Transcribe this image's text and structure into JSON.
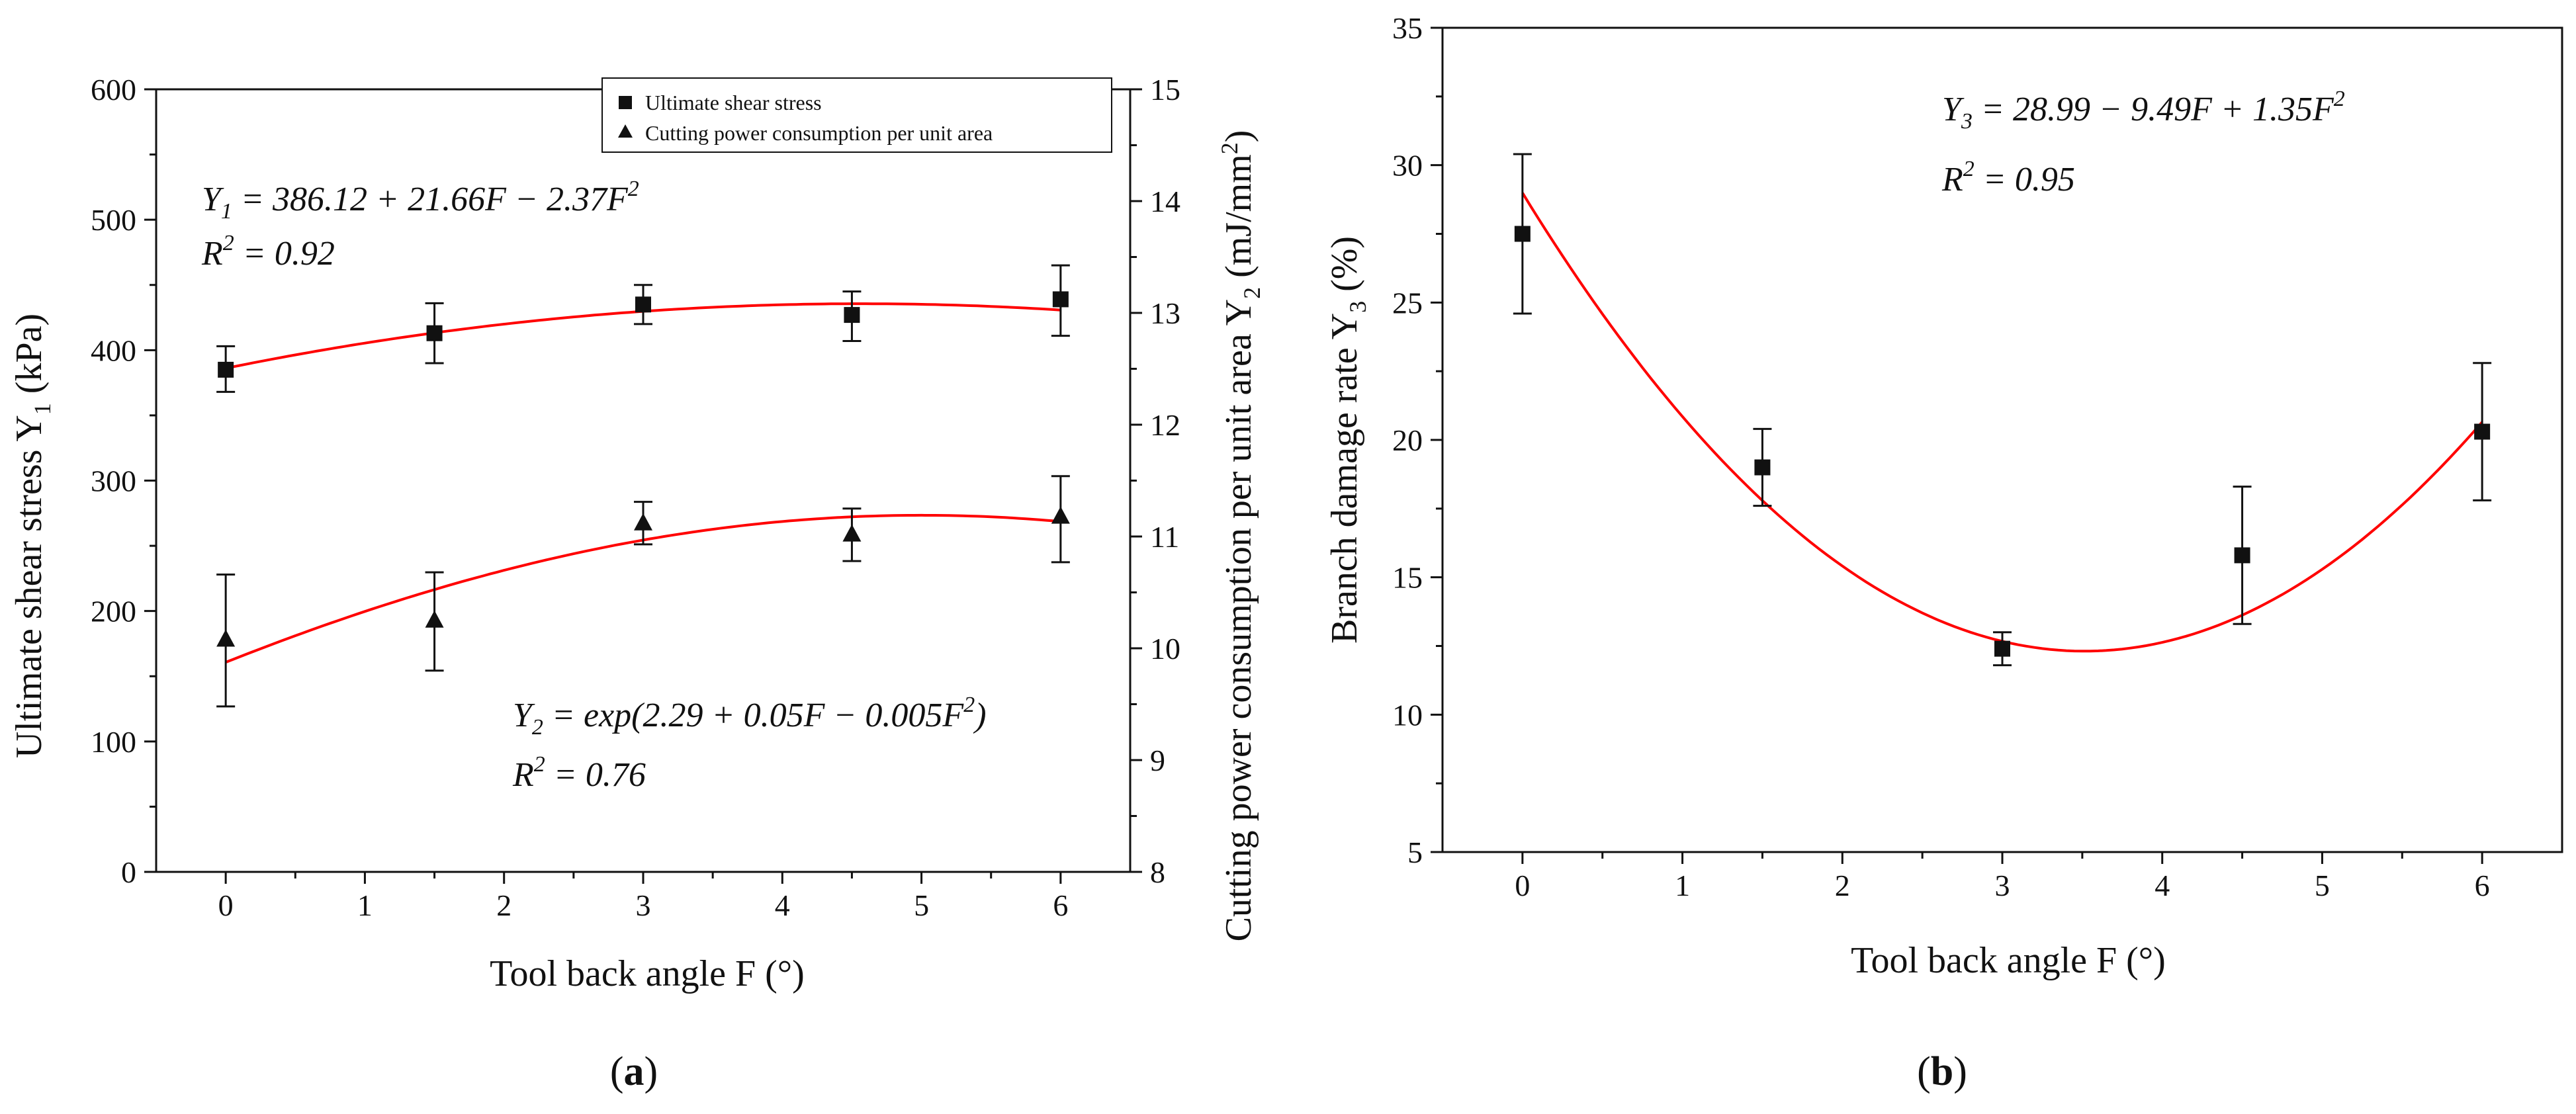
{
  "figure": {
    "panel_a_label": {
      "open": "(",
      "letter": "a",
      "close": ")"
    },
    "panel_b_label": {
      "open": "(",
      "letter": "b",
      "close": ")"
    }
  },
  "colors": {
    "fit": "#ff0000",
    "marker": "#111111",
    "axis": "#111111"
  },
  "chart_data": [
    {
      "type": "scatter",
      "panel": "a",
      "xlabel": "Tool back angle F (°)",
      "ylabel_left": {
        "main": "Ultimate shear stress Y",
        "sub": "1",
        "unit": " (kPa)"
      },
      "ylabel_right": {
        "main": "Cutting power consumption per unit area Y",
        "sub": "2",
        "unit": " (mJ/mm",
        "sup": "2",
        "close": ")"
      },
      "xlim": [
        -0.5,
        6.5
      ],
      "ylim_left": [
        0,
        600
      ],
      "ylim_right": [
        8,
        15
      ],
      "xticks": [
        0,
        1,
        2,
        3,
        4,
        5,
        6
      ],
      "yticks_left": [
        0,
        100,
        200,
        300,
        400,
        500,
        600
      ],
      "yticks_right": [
        8,
        9,
        10,
        11,
        12,
        13,
        14,
        15
      ],
      "legend": {
        "position": "top-right",
        "entries": [
          {
            "marker": "square",
            "label": "Ultimate shear stress"
          },
          {
            "marker": "triangle",
            "label": "Cutting power consumption per unit area"
          }
        ]
      },
      "series": [
        {
          "name": "Ultimate shear stress",
          "axis": "left",
          "marker": "square",
          "x": [
            0,
            1.5,
            3,
            4.5,
            6
          ],
          "y": [
            385,
            413,
            435,
            427,
            439
          ],
          "err_low": [
            368,
            390,
            420,
            407,
            411
          ],
          "err_high": [
            403,
            436,
            450,
            445,
            465
          ],
          "fit": {
            "type": "quadratic",
            "coef": [
              386.12,
              21.66,
              -2.37
            ]
          }
        },
        {
          "name": "Cutting power consumption per unit area",
          "axis": "right",
          "marker": "triangle",
          "x": [
            0,
            1.5,
            3,
            4.5,
            6
          ],
          "y": [
            10.08,
            10.25,
            11.12,
            11.02,
            11.18
          ],
          "err_low": [
            9.48,
            9.8,
            10.93,
            10.78,
            10.77
          ],
          "err_high": [
            10.66,
            10.68,
            11.31,
            11.25,
            11.54
          ],
          "fit": {
            "type": "exp_quadratic",
            "coef": [
              2.29,
              0.05,
              -0.005
            ]
          }
        }
      ],
      "annotations": {
        "eq1": {
          "lhs": "Y",
          "sub": "1",
          "rhs": " = 386.12 + 21.66F − 2.37F",
          "sup": "2"
        },
        "r2_1": {
          "lhs": "R",
          "sup": "2",
          "rhs": " = 0.92"
        },
        "eq2": {
          "lhs": "Y",
          "sub": "2",
          "rhs": " = exp(2.29 + 0.05F − 0.005F",
          "sup": "2",
          "close": ")"
        },
        "r2_2": {
          "lhs": "R",
          "sup": "2",
          "rhs": " = 0.76"
        }
      }
    },
    {
      "type": "scatter",
      "panel": "b",
      "xlabel": "Tool back angle F (°)",
      "ylabel": {
        "main": "Branch damage rate Y",
        "sub": "3",
        "unit": " (%)"
      },
      "xlim": [
        -0.5,
        6.5
      ],
      "ylim": [
        5,
        35
      ],
      "xticks": [
        0,
        1,
        2,
        3,
        4,
        5,
        6
      ],
      "yticks": [
        5,
        10,
        15,
        20,
        25,
        30,
        35
      ],
      "series": [
        {
          "name": "Branch damage rate",
          "marker": "square",
          "x": [
            0,
            1.5,
            3,
            4.5,
            6
          ],
          "y": [
            27.5,
            19.0,
            12.4,
            15.8,
            20.3
          ],
          "err_low": [
            24.6,
            17.6,
            11.8,
            13.3,
            17.8
          ],
          "err_high": [
            30.4,
            20.4,
            13.0,
            18.3,
            22.8
          ],
          "fit": {
            "type": "quadratic",
            "coef": [
              28.99,
              -9.49,
              1.35
            ]
          }
        }
      ],
      "annotations": {
        "eq3": {
          "lhs": "Y",
          "sub": "3",
          "rhs": " = 28.99 − 9.49F + 1.35F",
          "sup": "2"
        },
        "r2_3": {
          "lhs": "R",
          "sup": "2",
          "rhs": " = 0.95"
        }
      }
    }
  ]
}
